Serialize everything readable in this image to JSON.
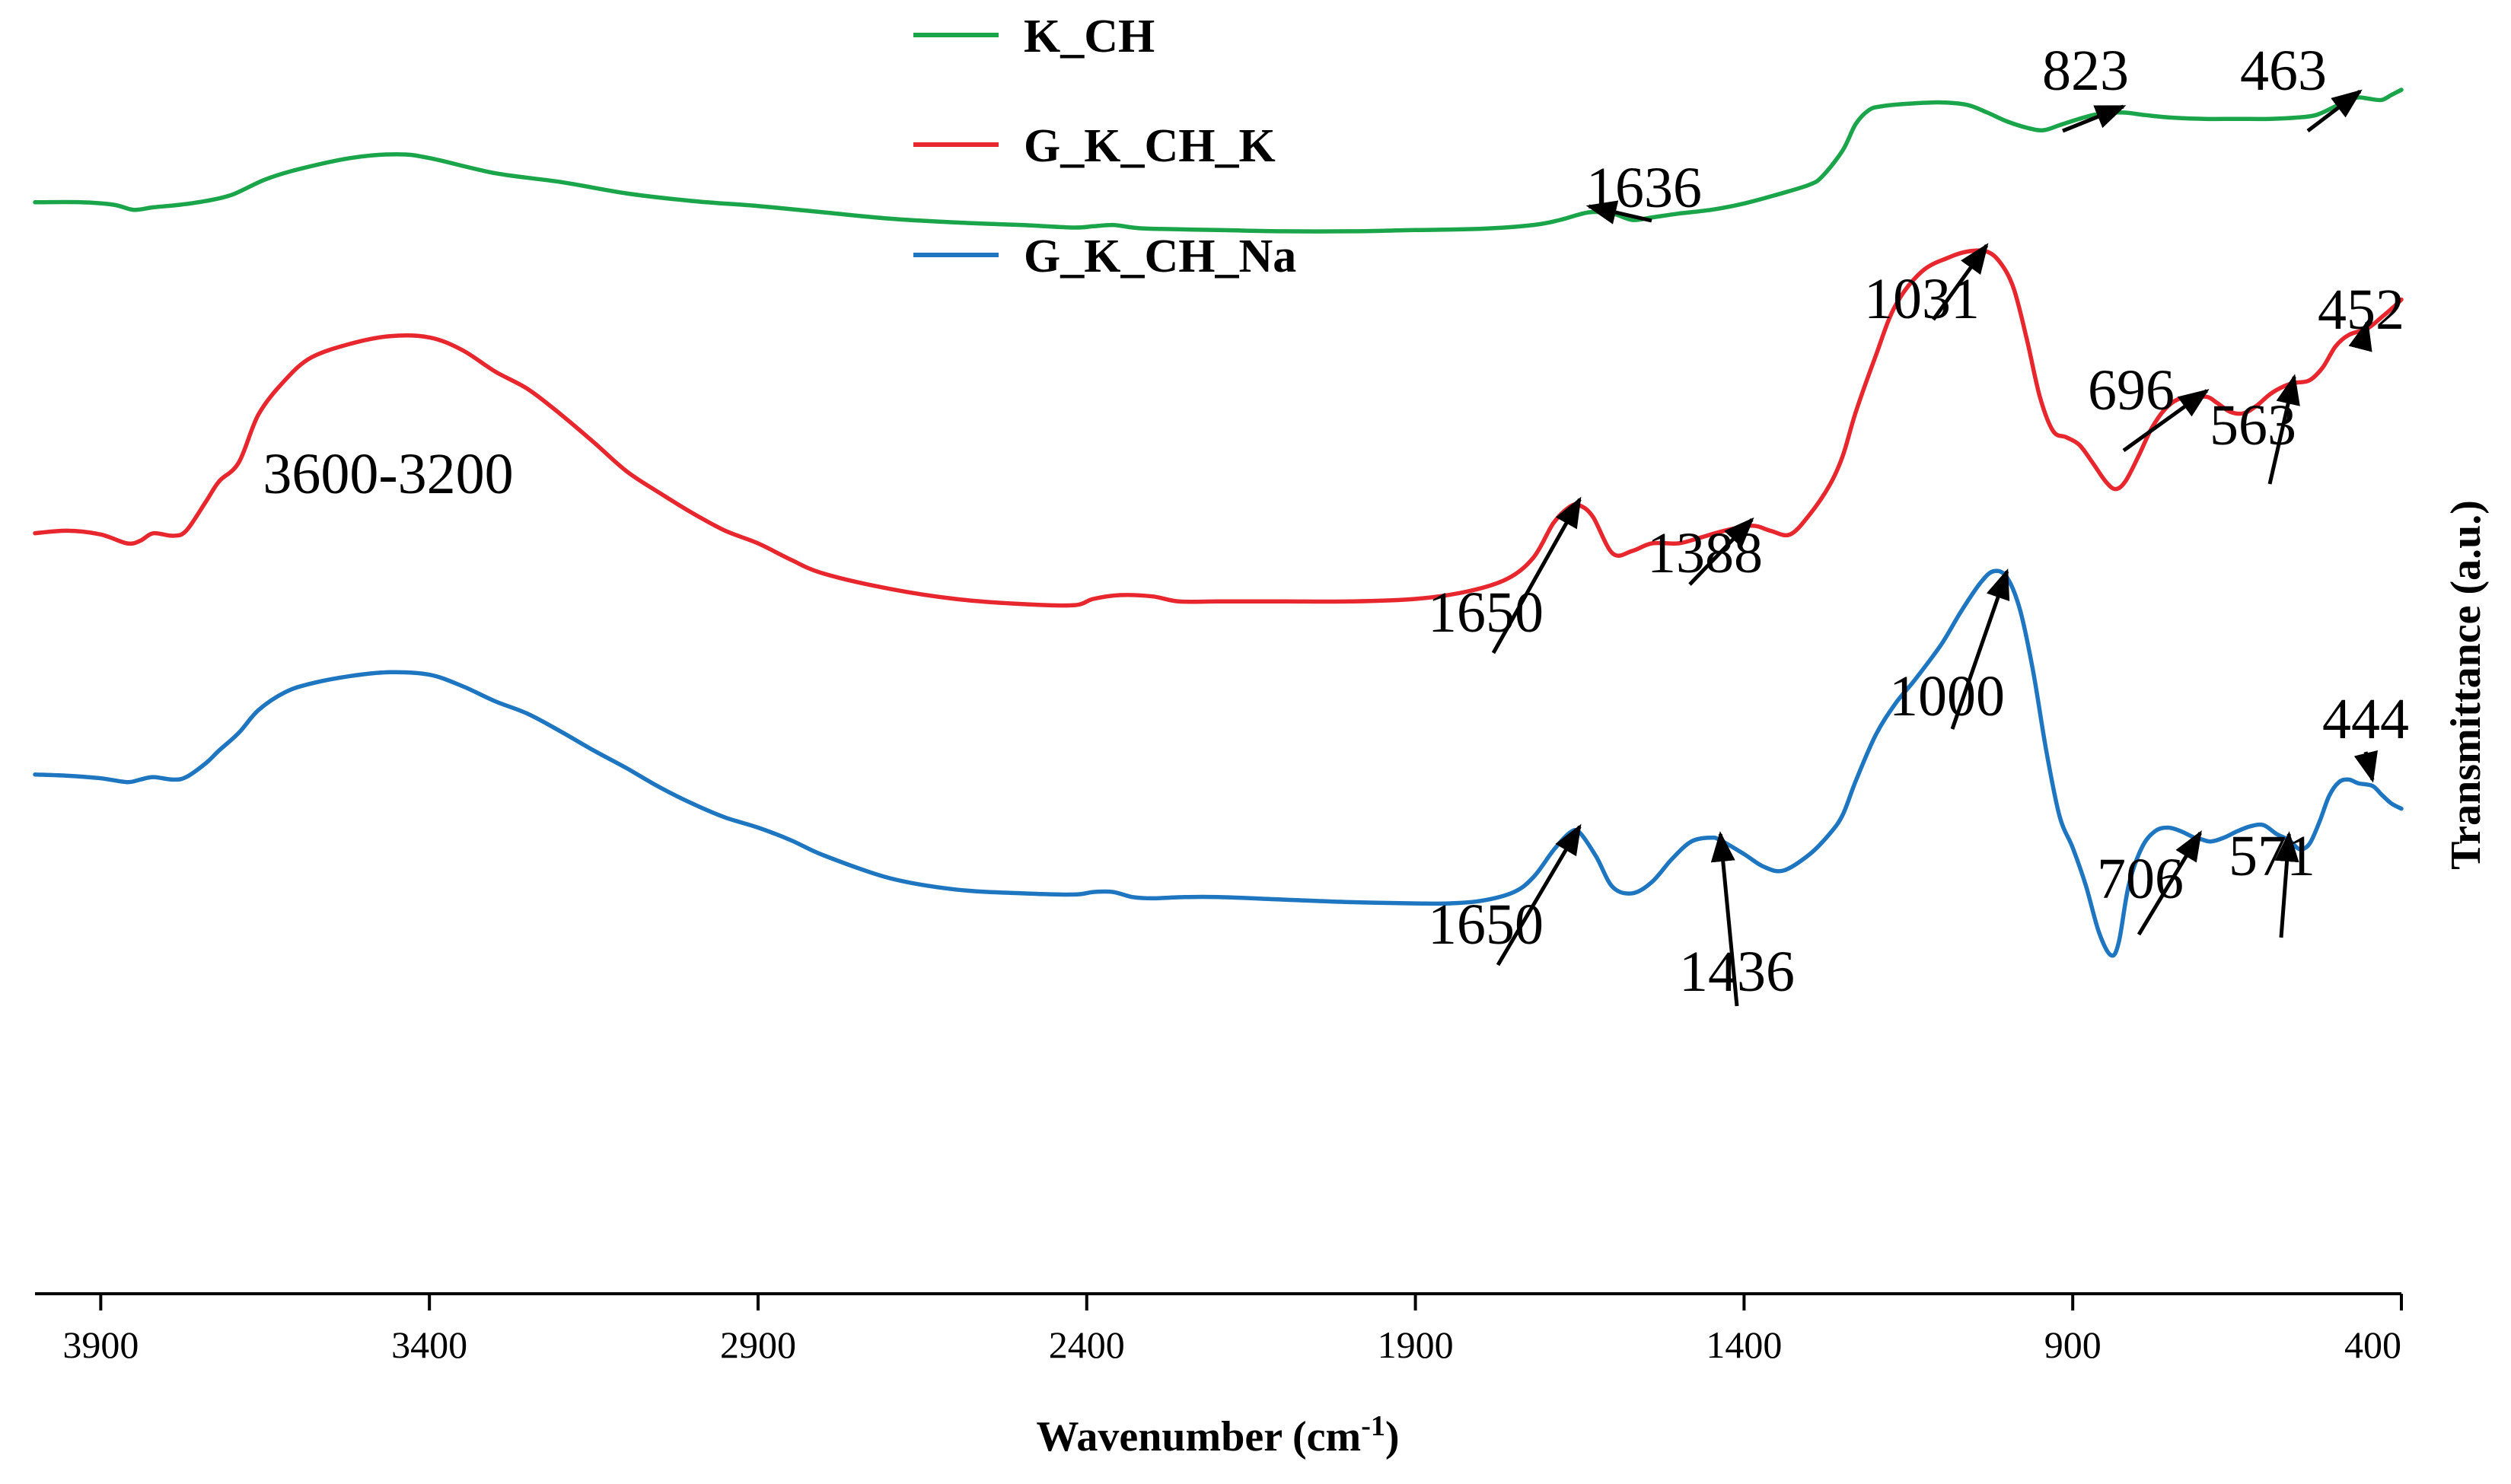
{
  "chart_data": {
    "type": "line",
    "title": "",
    "xlabel": "Wavenumber (cm",
    "xlabel_sup": "-1",
    "xlabel_close": ")",
    "ylabel": "Transmittance (a.u.)",
    "xlim": [
      4000,
      400
    ],
    "x_reversed": true,
    "ylim": [
      0,
      100
    ],
    "y_ticks_shown": false,
    "grid": false,
    "x_ticks": [
      3900,
      3400,
      2900,
      2400,
      1900,
      1400,
      900,
      400
    ],
    "x_tick_labels": [
      "3900",
      "3400",
      "2900",
      "2400",
      "1900",
      "1400",
      "900",
      "400"
    ],
    "legend_position": "top-center",
    "series": [
      {
        "name": "K_CH",
        "color": "#1aa54a",
        "points": [
          [
            4000,
            86.4
          ],
          [
            3930,
            86.4
          ],
          [
            3880,
            86.2
          ],
          [
            3850,
            85.8
          ],
          [
            3820,
            86.0
          ],
          [
            3780,
            86.2
          ],
          [
            3740,
            86.5
          ],
          [
            3700,
            87.0
          ],
          [
            3650,
            88.2
          ],
          [
            3600,
            89.0
          ],
          [
            3520,
            89.9
          ],
          [
            3450,
            90.2
          ],
          [
            3400,
            89.9
          ],
          [
            3300,
            88.7
          ],
          [
            3200,
            88.0
          ],
          [
            3100,
            87.1
          ],
          [
            3000,
            86.5
          ],
          [
            2900,
            86.1
          ],
          [
            2800,
            85.6
          ],
          [
            2700,
            85.1
          ],
          [
            2600,
            84.8
          ],
          [
            2500,
            84.6
          ],
          [
            2420,
            84.4
          ],
          [
            2390,
            84.5
          ],
          [
            2360,
            84.6
          ],
          [
            2330,
            84.4
          ],
          [
            2300,
            84.3
          ],
          [
            2200,
            84.2
          ],
          [
            2100,
            84.1
          ],
          [
            2000,
            84.1
          ],
          [
            1900,
            84.2
          ],
          [
            1800,
            84.3
          ],
          [
            1720,
            84.6
          ],
          [
            1680,
            85.0
          ],
          [
            1636,
            85.6
          ],
          [
            1600,
            85.5
          ],
          [
            1570,
            85.0
          ],
          [
            1540,
            85.2
          ],
          [
            1500,
            85.5
          ],
          [
            1450,
            85.8
          ],
          [
            1400,
            86.3
          ],
          [
            1350,
            87.0
          ],
          [
            1300,
            87.8
          ],
          [
            1280,
            88.5
          ],
          [
            1250,
            90.5
          ],
          [
            1230,
            92.6
          ],
          [
            1210,
            93.7
          ],
          [
            1190,
            94.0
          ],
          [
            1150,
            94.2
          ],
          [
            1100,
            94.3
          ],
          [
            1060,
            94.1
          ],
          [
            1030,
            93.5
          ],
          [
            1000,
            92.8
          ],
          [
            970,
            92.3
          ],
          [
            945,
            92.1
          ],
          [
            920,
            92.5
          ],
          [
            890,
            93.0
          ],
          [
            860,
            93.4
          ],
          [
            823,
            93.5
          ],
          [
            790,
            93.3
          ],
          [
            750,
            93.1
          ],
          [
            700,
            93.0
          ],
          [
            650,
            93.0
          ],
          [
            600,
            93.0
          ],
          [
            560,
            93.1
          ],
          [
            530,
            93.3
          ],
          [
            500,
            94.0
          ],
          [
            475,
            94.6
          ],
          [
            463,
            94.7
          ],
          [
            450,
            94.6
          ],
          [
            430,
            94.5
          ],
          [
            415,
            94.9
          ],
          [
            400,
            95.3
          ]
        ]
      },
      {
        "name": "G_K_CH_K",
        "color": "#e8262e",
        "points": [
          [
            4000,
            60.2
          ],
          [
            3950,
            60.4
          ],
          [
            3900,
            60.1
          ],
          [
            3860,
            59.4
          ],
          [
            3840,
            59.6
          ],
          [
            3820,
            60.2
          ],
          [
            3790,
            60.0
          ],
          [
            3770,
            60.4
          ],
          [
            3740,
            62.7
          ],
          [
            3720,
            64.3
          ],
          [
            3690,
            65.8
          ],
          [
            3660,
            69.6
          ],
          [
            3620,
            72.3
          ],
          [
            3580,
            74.1
          ],
          [
            3520,
            75.2
          ],
          [
            3460,
            75.8
          ],
          [
            3400,
            75.7
          ],
          [
            3350,
            74.7
          ],
          [
            3300,
            73.0
          ],
          [
            3250,
            71.6
          ],
          [
            3200,
            69.6
          ],
          [
            3150,
            67.4
          ],
          [
            3100,
            65.1
          ],
          [
            3050,
            63.4
          ],
          [
            3000,
            61.8
          ],
          [
            2950,
            60.4
          ],
          [
            2900,
            59.4
          ],
          [
            2850,
            58.1
          ],
          [
            2800,
            57.0
          ],
          [
            2700,
            55.8
          ],
          [
            2600,
            55.0
          ],
          [
            2500,
            54.6
          ],
          [
            2420,
            54.5
          ],
          [
            2390,
            55.0
          ],
          [
            2350,
            55.3
          ],
          [
            2300,
            55.2
          ],
          [
            2260,
            54.8
          ],
          [
            2200,
            54.8
          ],
          [
            2100,
            54.8
          ],
          [
            2000,
            54.8
          ],
          [
            1900,
            55.0
          ],
          [
            1820,
            55.6
          ],
          [
            1760,
            56.6
          ],
          [
            1720,
            58.3
          ],
          [
            1690,
            61.0
          ],
          [
            1665,
            62.3
          ],
          [
            1650,
            62.4
          ],
          [
            1630,
            61.5
          ],
          [
            1600,
            58.6
          ],
          [
            1570,
            58.8
          ],
          [
            1540,
            59.4
          ],
          [
            1500,
            59.4
          ],
          [
            1470,
            59.8
          ],
          [
            1430,
            60.4
          ],
          [
            1388,
            60.8
          ],
          [
            1360,
            60.4
          ],
          [
            1330,
            60.1
          ],
          [
            1300,
            61.7
          ],
          [
            1270,
            64.0
          ],
          [
            1250,
            66.3
          ],
          [
            1230,
            69.8
          ],
          [
            1200,
            74.2
          ],
          [
            1170,
            78.2
          ],
          [
            1130,
            80.9
          ],
          [
            1090,
            82.0
          ],
          [
            1060,
            82.5
          ],
          [
            1031,
            82.5
          ],
          [
            1010,
            81.6
          ],
          [
            990,
            79.6
          ],
          [
            970,
            75.6
          ],
          [
            950,
            71.0
          ],
          [
            930,
            68.3
          ],
          [
            910,
            67.8
          ],
          [
            890,
            67.2
          ],
          [
            870,
            65.8
          ],
          [
            850,
            64.3
          ],
          [
            835,
            63.7
          ],
          [
            820,
            64.3
          ],
          [
            800,
            66.3
          ],
          [
            780,
            68.5
          ],
          [
            760,
            70.0
          ],
          [
            740,
            70.8
          ],
          [
            720,
            70.9
          ],
          [
            696,
            71.0
          ],
          [
            680,
            70.5
          ],
          [
            660,
            69.8
          ],
          [
            640,
            69.7
          ],
          [
            620,
            70.3
          ],
          [
            600,
            71.2
          ],
          [
            580,
            71.8
          ],
          [
            563,
            72.1
          ],
          [
            540,
            72.3
          ],
          [
            520,
            73.3
          ],
          [
            500,
            75.0
          ],
          [
            480,
            75.9
          ],
          [
            452,
            76.4
          ],
          [
            430,
            77.3
          ],
          [
            410,
            78.2
          ],
          [
            400,
            78.7
          ]
        ]
      },
      {
        "name": "G_K_CH_Na",
        "color": "#1e76c0",
        "points": [
          [
            4000,
            41.1
          ],
          [
            3950,
            41.0
          ],
          [
            3900,
            40.8
          ],
          [
            3860,
            40.5
          ],
          [
            3840,
            40.7
          ],
          [
            3820,
            40.9
          ],
          [
            3790,
            40.7
          ],
          [
            3770,
            40.9
          ],
          [
            3740,
            42.0
          ],
          [
            3720,
            43.0
          ],
          [
            3690,
            44.4
          ],
          [
            3660,
            46.2
          ],
          [
            3620,
            47.6
          ],
          [
            3580,
            48.3
          ],
          [
            3520,
            48.9
          ],
          [
            3460,
            49.2
          ],
          [
            3400,
            49.0
          ],
          [
            3350,
            48.1
          ],
          [
            3300,
            46.9
          ],
          [
            3250,
            45.9
          ],
          [
            3200,
            44.5
          ],
          [
            3150,
            43.0
          ],
          [
            3100,
            41.6
          ],
          [
            3050,
            40.1
          ],
          [
            3000,
            38.8
          ],
          [
            2950,
            37.7
          ],
          [
            2900,
            36.9
          ],
          [
            2850,
            35.9
          ],
          [
            2800,
            34.7
          ],
          [
            2700,
            32.9
          ],
          [
            2600,
            32.0
          ],
          [
            2500,
            31.7
          ],
          [
            2420,
            31.6
          ],
          [
            2390,
            31.8
          ],
          [
            2360,
            31.8
          ],
          [
            2330,
            31.4
          ],
          [
            2300,
            31.3
          ],
          [
            2250,
            31.4
          ],
          [
            2200,
            31.4
          ],
          [
            2100,
            31.2
          ],
          [
            2000,
            31.0
          ],
          [
            1900,
            30.9
          ],
          [
            1850,
            30.9
          ],
          [
            1800,
            31.1
          ],
          [
            1750,
            31.8
          ],
          [
            1720,
            33.0
          ],
          [
            1690,
            35.1
          ],
          [
            1665,
            36.5
          ],
          [
            1650,
            36.5
          ],
          [
            1625,
            34.6
          ],
          [
            1600,
            32.2
          ],
          [
            1570,
            31.7
          ],
          [
            1540,
            32.6
          ],
          [
            1510,
            34.4
          ],
          [
            1480,
            35.8
          ],
          [
            1450,
            36.1
          ],
          [
            1436,
            35.9
          ],
          [
            1400,
            34.8
          ],
          [
            1370,
            33.8
          ],
          [
            1340,
            33.5
          ],
          [
            1300,
            34.8
          ],
          [
            1270,
            36.4
          ],
          [
            1250,
            37.9
          ],
          [
            1230,
            40.6
          ],
          [
            1200,
            44.2
          ],
          [
            1170,
            46.7
          ],
          [
            1140,
            48.6
          ],
          [
            1100,
            51.4
          ],
          [
            1070,
            54.0
          ],
          [
            1040,
            56.3
          ],
          [
            1020,
            57.2
          ],
          [
            1000,
            56.7
          ],
          [
            980,
            54.1
          ],
          [
            960,
            49.2
          ],
          [
            940,
            42.9
          ],
          [
            920,
            37.8
          ],
          [
            900,
            35.3
          ],
          [
            880,
            32.3
          ],
          [
            860,
            28.6
          ],
          [
            842,
            26.8
          ],
          [
            830,
            27.8
          ],
          [
            815,
            32.3
          ],
          [
            795,
            35.3
          ],
          [
            775,
            36.6
          ],
          [
            755,
            36.9
          ],
          [
            735,
            36.6
          ],
          [
            715,
            36.1
          ],
          [
            706,
            36.0
          ],
          [
            690,
            35.8
          ],
          [
            670,
            36.1
          ],
          [
            650,
            36.6
          ],
          [
            630,
            37.0
          ],
          [
            610,
            37.1
          ],
          [
            590,
            36.4
          ],
          [
            571,
            35.9
          ],
          [
            555,
            35.2
          ],
          [
            540,
            35.6
          ],
          [
            525,
            37.3
          ],
          [
            510,
            39.4
          ],
          [
            495,
            40.5
          ],
          [
            480,
            40.7
          ],
          [
            465,
            40.4
          ],
          [
            444,
            40.2
          ],
          [
            430,
            39.5
          ],
          [
            415,
            38.8
          ],
          [
            400,
            38.4
          ]
        ]
      }
    ],
    "annotations": [
      {
        "text": "823",
        "series": "K_CH",
        "x": 823
      },
      {
        "text": "463",
        "series": "K_CH",
        "x": 463
      },
      {
        "text": "1636",
        "series": "K_CH",
        "x": 1636
      },
      {
        "text": "1031",
        "series": "G_K_CH_K",
        "x": 1031
      },
      {
        "text": "452",
        "series": "G_K_CH_K",
        "x": 452
      },
      {
        "text": "696",
        "series": "G_K_CH_K",
        "x": 696
      },
      {
        "text": "563",
        "series": "G_K_CH_K",
        "x": 563
      },
      {
        "text": "3600-3200",
        "series": "G_K_CH_K",
        "x": 3400
      },
      {
        "text": "1650",
        "series": "G_K_CH_K",
        "x": 1650
      },
      {
        "text": "1388",
        "series": "G_K_CH_K",
        "x": 1388
      },
      {
        "text": "1000",
        "series": "G_K_CH_Na",
        "x": 1000
      },
      {
        "text": "444",
        "series": "G_K_CH_Na",
        "x": 444
      },
      {
        "text": "706",
        "series": "G_K_CH_Na",
        "x": 706
      },
      {
        "text": "571",
        "series": "G_K_CH_Na",
        "x": 571
      },
      {
        "text": "1650",
        "series": "G_K_CH_Na",
        "x": 1650
      },
      {
        "text": "1436",
        "series": "G_K_CH_Na",
        "x": 1436
      }
    ]
  }
}
